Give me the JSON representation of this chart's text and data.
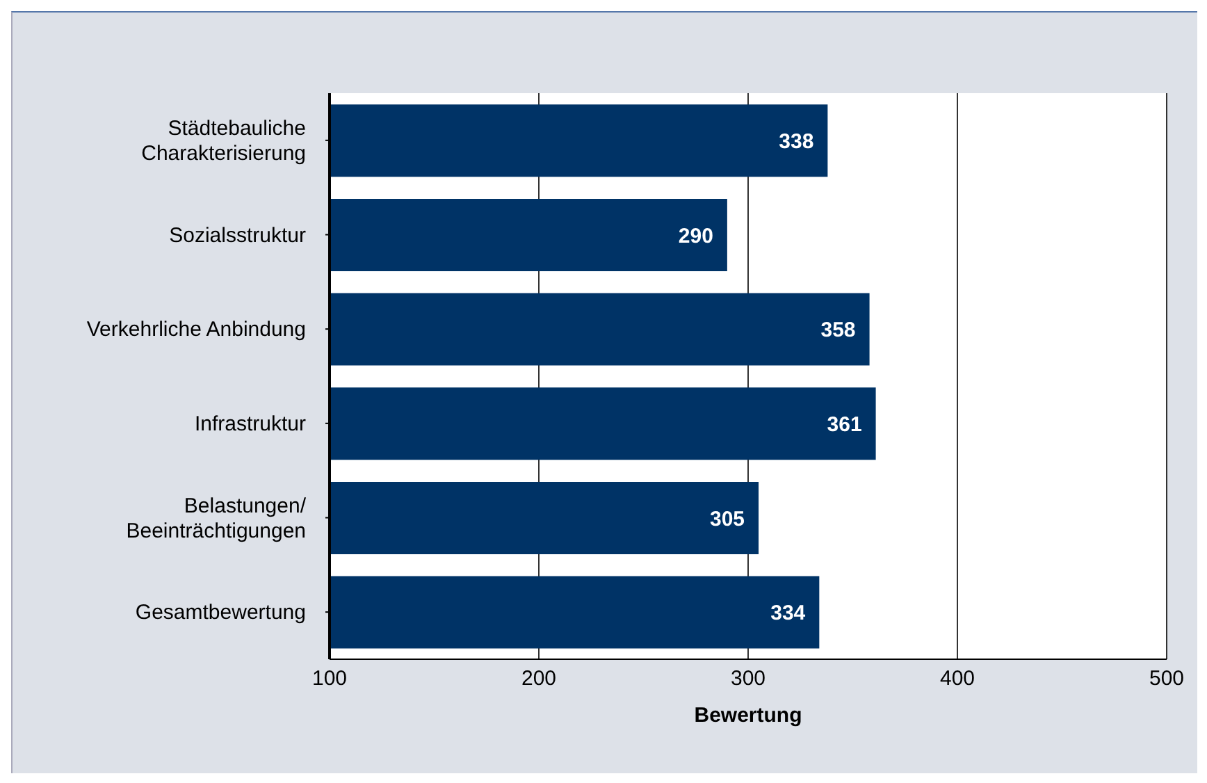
{
  "chart_data": {
    "type": "bar",
    "orientation": "horizontal",
    "xlabel": "Bewertung",
    "categories": [
      "Städtebauliche\nCharakterisierung",
      "Sozialsstruktur",
      "Verkehrliche Anbindung",
      "Infrastruktur",
      "Belastungen/\nBeeinträchtigungen",
      "Gesamtbewertung"
    ],
    "values": [
      338,
      290,
      358,
      361,
      305,
      334
    ],
    "color": "#003366",
    "xlim": [
      100,
      500
    ],
    "xticks": [
      100,
      200,
      300,
      400,
      500
    ],
    "grid": "x",
    "data_labels": true
  }
}
